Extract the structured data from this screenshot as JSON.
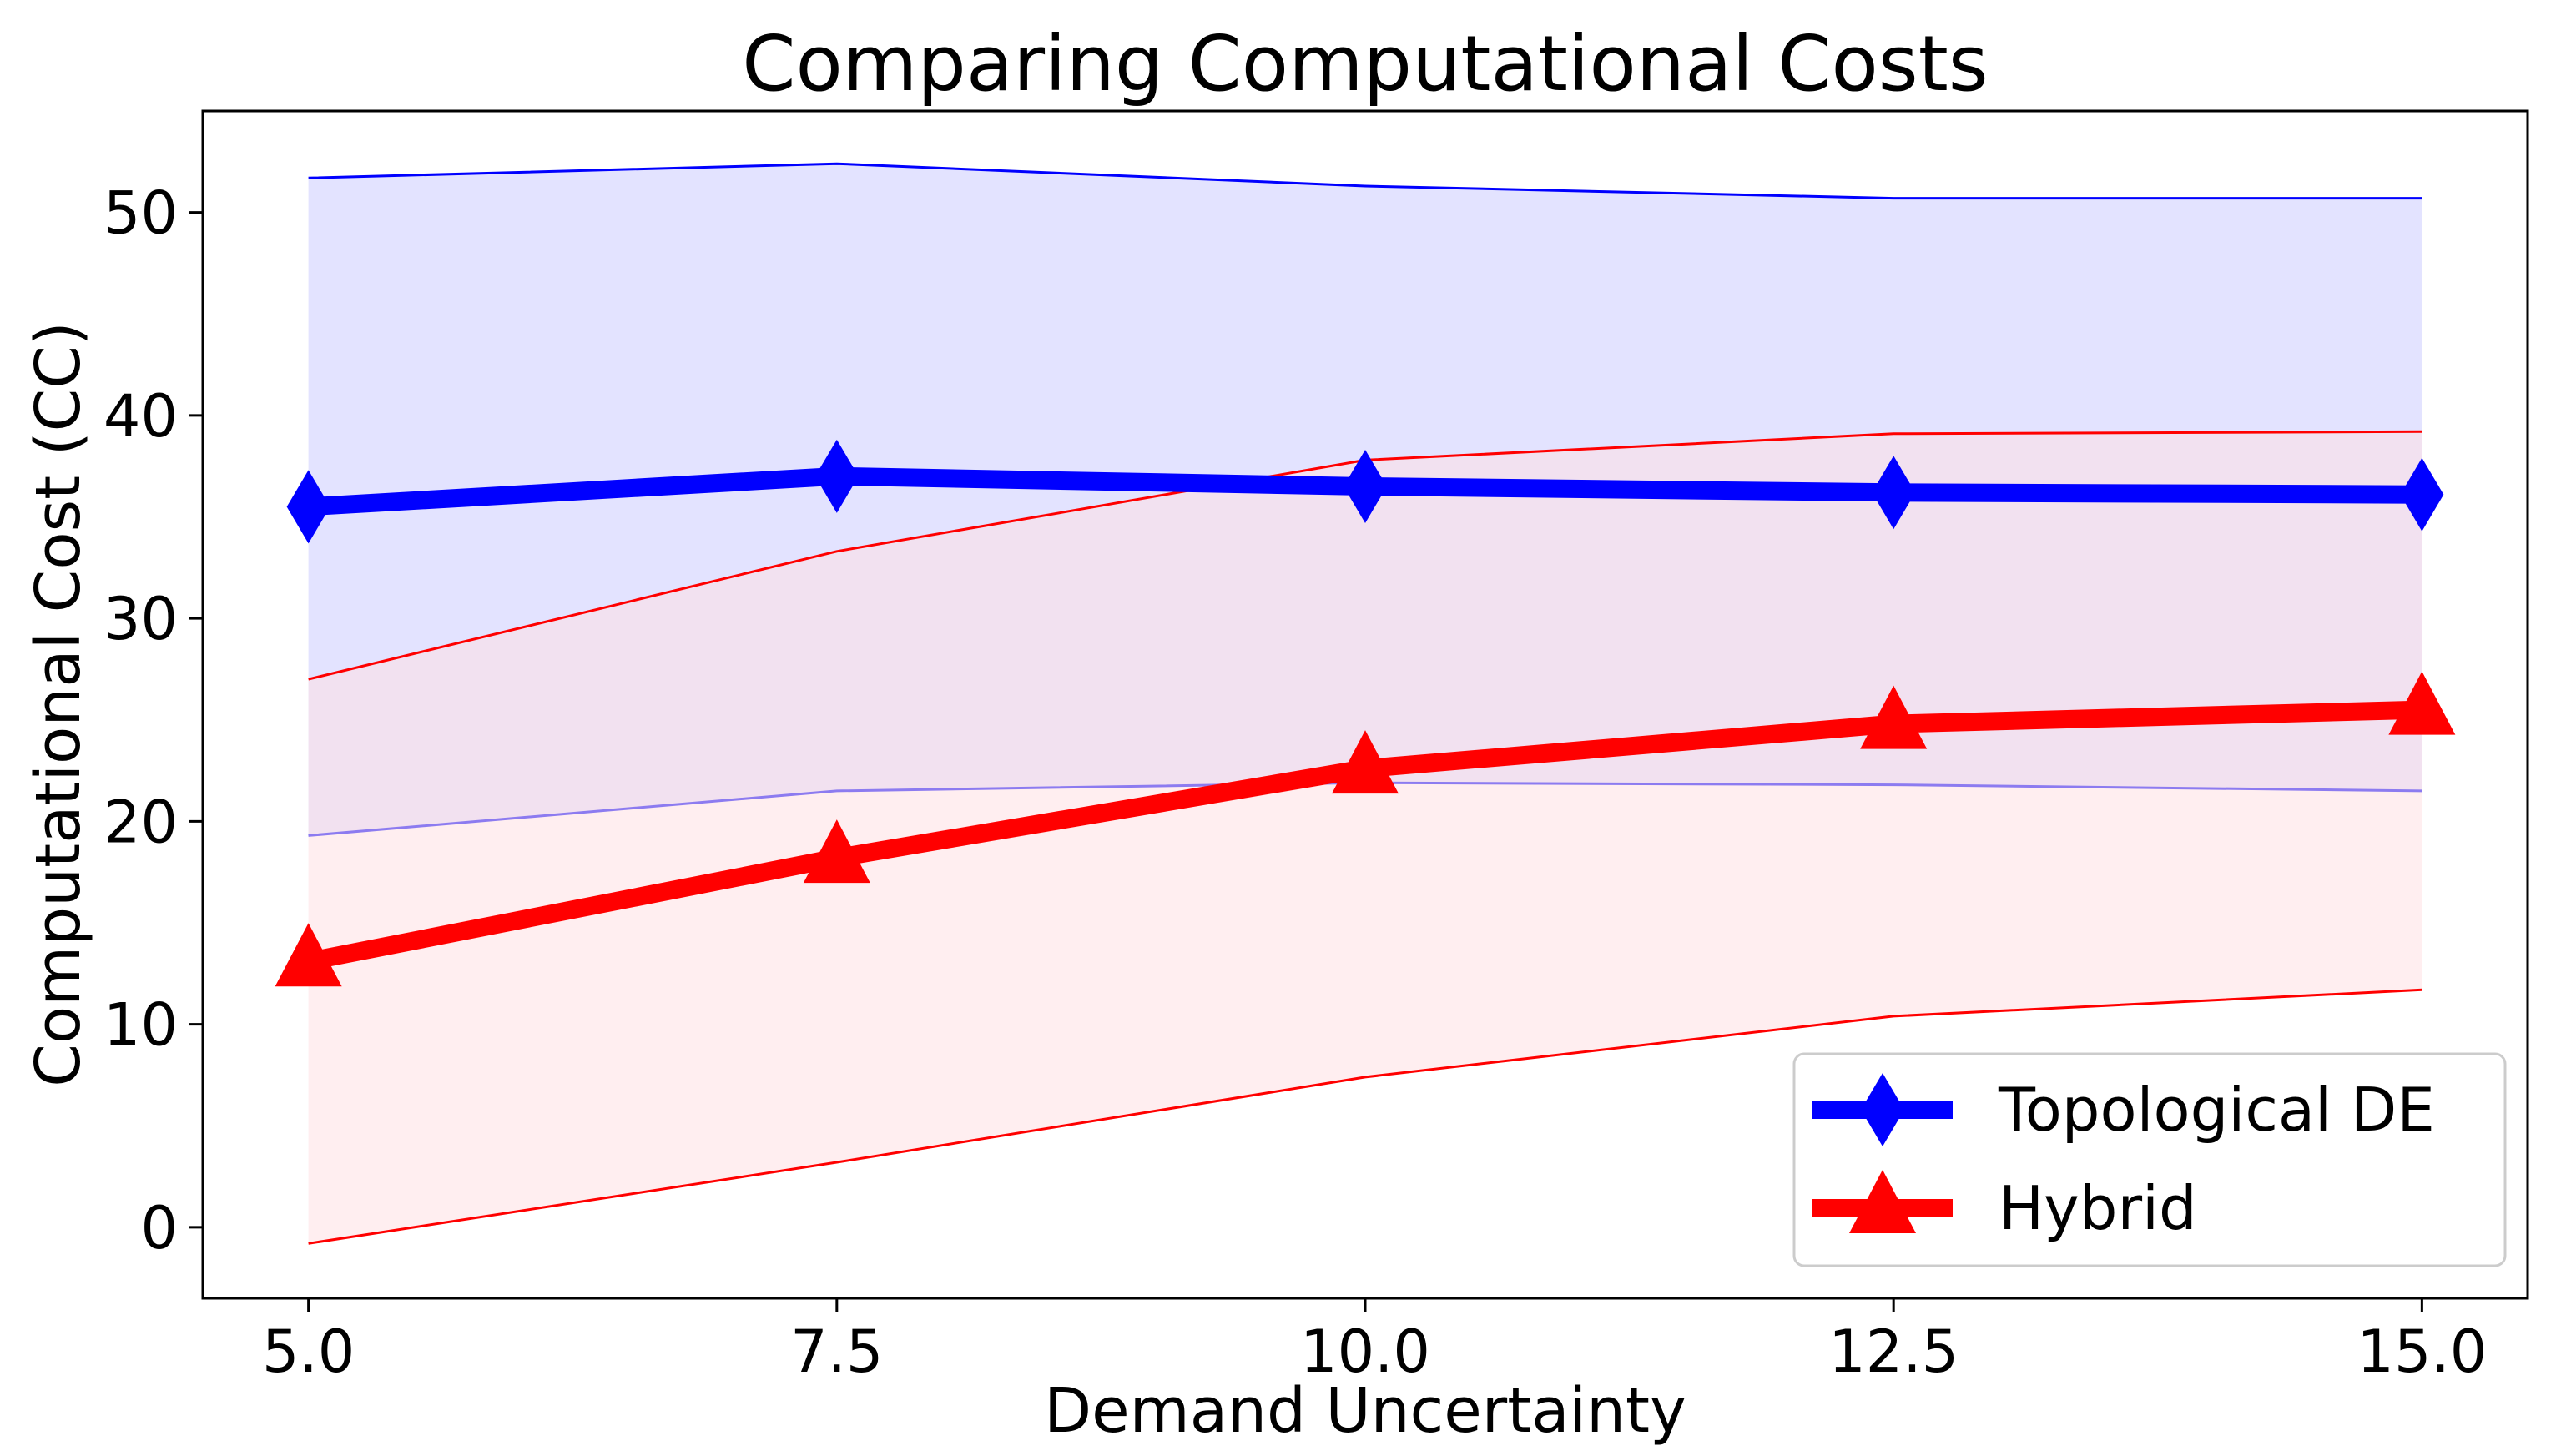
{
  "chart_data": {
    "type": "line",
    "title": "Comparing Computational Costs",
    "xlabel": "Demand Uncertainty",
    "ylabel": "Computational Cost (CC)",
    "x": [
      5.0,
      7.5,
      10.0,
      12.5,
      15.0
    ],
    "x_tick_labels": [
      "5.0",
      "7.5",
      "10.0",
      "12.5",
      "15.0"
    ],
    "y_ticks": [
      0,
      10,
      20,
      30,
      40,
      50
    ],
    "y_tick_labels": [
      "0",
      "10",
      "20",
      "30",
      "40",
      "50"
    ],
    "xlim": [
      4.5,
      15.5
    ],
    "ylim": [
      -3.5,
      55
    ],
    "grid": false,
    "legend_position": "lower-right",
    "series": [
      {
        "name": "Topological DE",
        "color": "#0000ff",
        "fill_color": "#e3e3ff",
        "marker": "diamond",
        "values": [
          35.5,
          37.0,
          36.5,
          36.2,
          36.1
        ],
        "band_upper": [
          51.7,
          52.4,
          51.3,
          50.7,
          50.7
        ],
        "band_lower": [
          19.3,
          21.5,
          21.9,
          21.8,
          21.5
        ]
      },
      {
        "name": "Hybrid",
        "color": "#ff0000",
        "fill_color": "#ffe0e3",
        "marker": "triangle",
        "values": [
          13.1,
          18.2,
          22.6,
          24.8,
          25.5
        ],
        "band_upper": [
          27.0,
          33.3,
          37.8,
          39.1,
          39.2
        ],
        "band_lower": [
          -0.8,
          3.2,
          7.4,
          10.4,
          11.7
        ]
      }
    ]
  }
}
